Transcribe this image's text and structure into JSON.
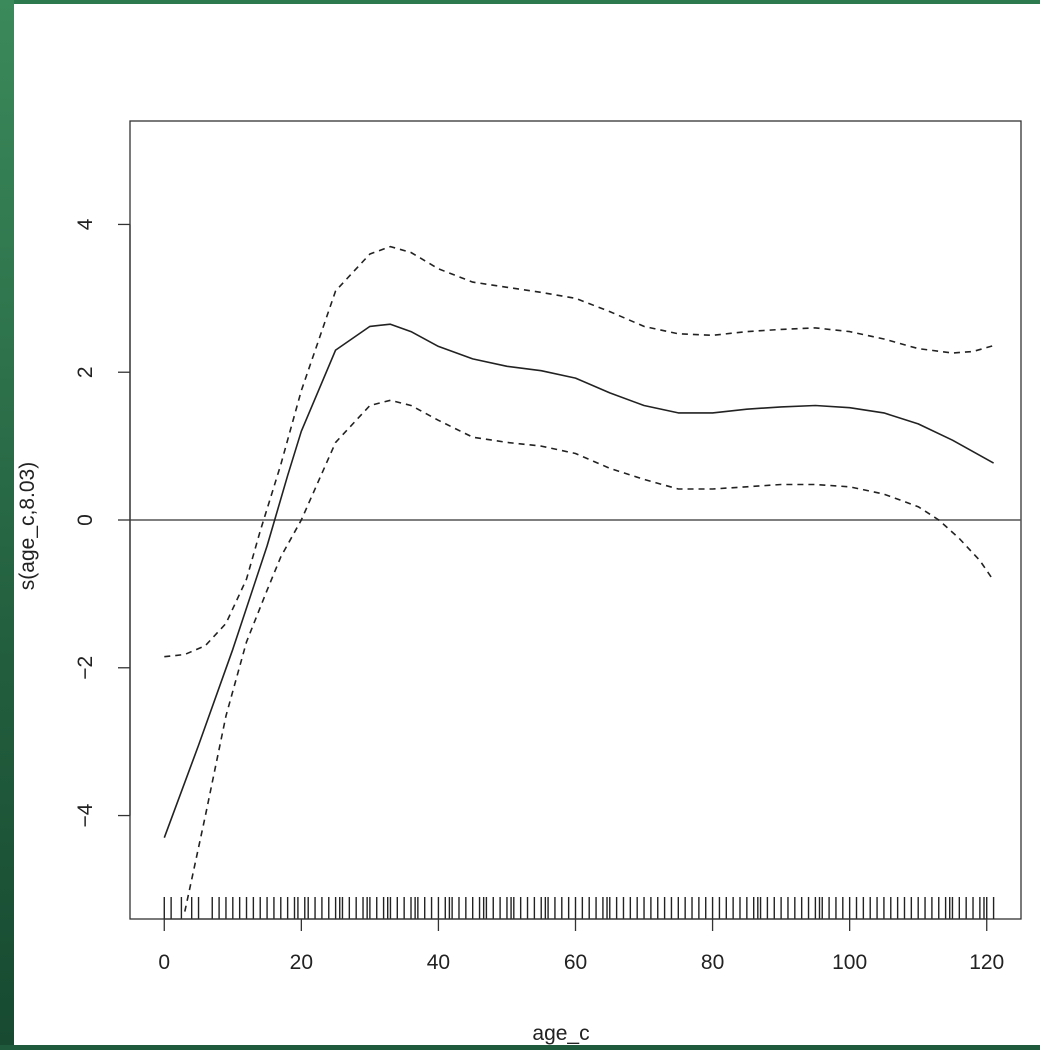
{
  "chart_data": {
    "type": "line",
    "title": "",
    "xlabel": "age_c",
    "ylabel": "s(age_c,8.03)",
    "xlim": [
      -5,
      125
    ],
    "ylim": [
      -5.4,
      5.4
    ],
    "xticks": [
      0,
      20,
      40,
      60,
      80,
      100,
      120
    ],
    "yticks": [
      -4,
      -2,
      0,
      2,
      4
    ],
    "grid": false,
    "legend": "none",
    "hline": 0,
    "colors": {
      "line": "#222222",
      "axis": "#333333",
      "zero_line": "#555555"
    },
    "series": [
      {
        "style": "solid",
        "x": [
          0,
          5,
          10,
          15,
          18,
          20,
          25,
          30,
          33,
          36,
          40,
          45,
          50,
          55,
          60,
          65,
          70,
          75,
          80,
          85,
          90,
          95,
          100,
          105,
          110,
          115,
          121
        ],
        "y": [
          -4.3,
          -3.05,
          -1.75,
          -0.35,
          0.6,
          1.2,
          2.3,
          2.62,
          2.65,
          2.55,
          2.35,
          2.18,
          2.08,
          2.02,
          1.92,
          1.72,
          1.55,
          1.45,
          1.45,
          1.5,
          1.53,
          1.55,
          1.52,
          1.45,
          1.3,
          1.08,
          0.77
        ]
      },
      {
        "style": "dashed",
        "x": [
          0,
          3,
          6,
          9,
          12,
          14,
          17,
          20,
          25,
          30,
          33,
          36,
          40,
          45,
          50,
          55,
          60,
          65,
          70,
          75,
          80,
          85,
          90,
          95,
          100,
          105,
          110,
          115,
          118,
          121
        ],
        "y": [
          -1.85,
          -1.82,
          -1.7,
          -1.4,
          -0.8,
          -0.15,
          0.75,
          1.75,
          3.1,
          3.6,
          3.7,
          3.62,
          3.4,
          3.22,
          3.15,
          3.08,
          3.0,
          2.82,
          2.62,
          2.52,
          2.5,
          2.55,
          2.58,
          2.6,
          2.55,
          2.45,
          2.32,
          2.26,
          2.28,
          2.36
        ]
      },
      {
        "style": "dashed",
        "x": [
          3,
          6,
          9,
          12,
          15,
          17,
          20,
          25,
          30,
          33,
          36,
          40,
          45,
          50,
          55,
          60,
          65,
          70,
          75,
          80,
          85,
          90,
          95,
          100,
          105,
          110,
          113,
          116,
          119,
          121
        ],
        "y": [
          -5.3,
          -4.0,
          -2.65,
          -1.65,
          -0.95,
          -0.5,
          0.0,
          1.05,
          1.55,
          1.62,
          1.55,
          1.35,
          1.12,
          1.05,
          1.0,
          0.9,
          0.7,
          0.55,
          0.42,
          0.42,
          0.45,
          0.48,
          0.48,
          0.45,
          0.35,
          0.18,
          0.0,
          -0.25,
          -0.55,
          -0.82
        ]
      }
    ],
    "rug": [
      0,
      1,
      2.5,
      4,
      5,
      7,
      8,
      9,
      10,
      11,
      12,
      13,
      14,
      15,
      16,
      17,
      18,
      19,
      19.5,
      20.5,
      21,
      22,
      23,
      24,
      25,
      25.6,
      26,
      27,
      28,
      29,
      29.6,
      30,
      31,
      32,
      32.6,
      33,
      34,
      35,
      36,
      36.6,
      37,
      38,
      39,
      40,
      41,
      41.6,
      42,
      43,
      44,
      45,
      46,
      46.6,
      47,
      48,
      49,
      50,
      50.6,
      51,
      52,
      53,
      54,
      55,
      55.6,
      56,
      57,
      58,
      59,
      60,
      61,
      62,
      63,
      64,
      64.6,
      65,
      66,
      67,
      68,
      69,
      70,
      71,
      72,
      73,
      74,
      75,
      76,
      77,
      78,
      79,
      80,
      81,
      82,
      83,
      84,
      85,
      86,
      86.6,
      87,
      88,
      89,
      90,
      91,
      92,
      93,
      94,
      95,
      95.6,
      96,
      97,
      98,
      99,
      100,
      101,
      102,
      103,
      104,
      105,
      106,
      107,
      108,
      109,
      110,
      111,
      112,
      113,
      114,
      114.6,
      115,
      116,
      117,
      118,
      119,
      119.6,
      120,
      121
    ]
  }
}
